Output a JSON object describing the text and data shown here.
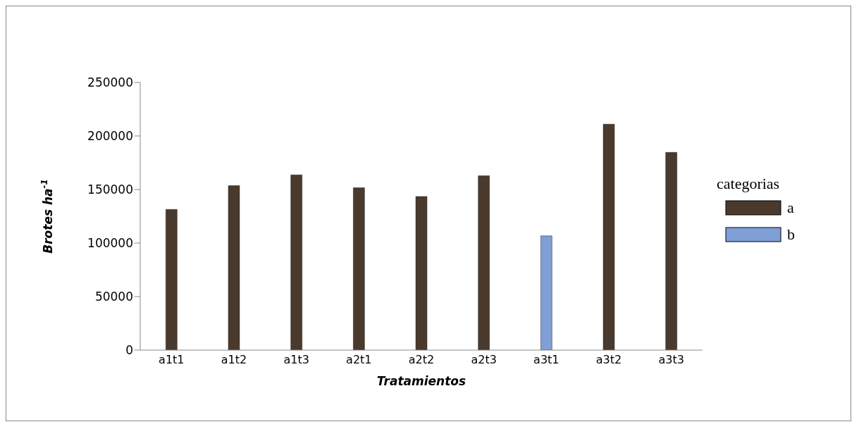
{
  "chart_data": {
    "type": "bar",
    "xlabel": "Tratamientos",
    "ylabel": "Brotes ha$^{-1}$",
    "legend_title": "categorias",
    "categories": [
      "a1t1",
      "a1t2",
      "a1t3",
      "a2t1",
      "a2t2",
      "a2t3",
      "a3t1",
      "a3t2",
      "a3t3"
    ],
    "series": [
      {
        "name": "a",
        "color": "#4a3a2e",
        "values": [
          131400,
          153600,
          163600,
          151700,
          143500,
          162800,
          null,
          211000,
          184700
        ]
      },
      {
        "name": "b",
        "color": "#7f9fd6",
        "values": [
          null,
          null,
          null,
          null,
          null,
          null,
          106700,
          null,
          null
        ]
      }
    ],
    "stacked": true,
    "ylim": [
      0,
      250000
    ],
    "yticks": [
      0,
      50000,
      100000,
      150000,
      200000,
      250000
    ],
    "grid": false,
    "legend": "right"
  }
}
